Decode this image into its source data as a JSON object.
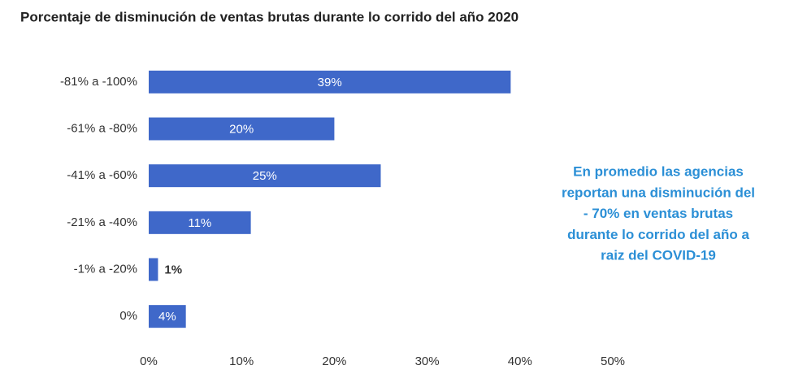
{
  "chart_data": {
    "type": "bar",
    "orientation": "horizontal",
    "title": "Porcentaje de disminución de ventas brutas durante lo corrido del año 2020",
    "categories": [
      "-81% a -100%",
      "-61% a -80%",
      "-41% a -60%",
      "-21% a -40%",
      "-1% a -20%",
      "0%"
    ],
    "values": [
      39,
      20,
      25,
      11,
      1,
      4
    ],
    "value_labels": [
      "39%",
      "20%",
      "25%",
      "11%",
      "1%",
      "4%"
    ],
    "color": "#3f68c9",
    "xlim": [
      0,
      50
    ],
    "xticks": [
      {
        "value": 0,
        "label": "0%"
      },
      {
        "value": 10,
        "label": "10%"
      },
      {
        "value": 20,
        "label": "20%"
      },
      {
        "value": 30,
        "label": "30%"
      },
      {
        "value": 40,
        "label": "40%"
      },
      {
        "value": 50,
        "label": "50%"
      }
    ],
    "grid": false,
    "annotation": [
      "En promedio las agencias",
      "reportan una disminución del",
      "- 70% en ventas brutas",
      "durante lo corrido del año a",
      "raiz del COVID-19"
    ]
  }
}
